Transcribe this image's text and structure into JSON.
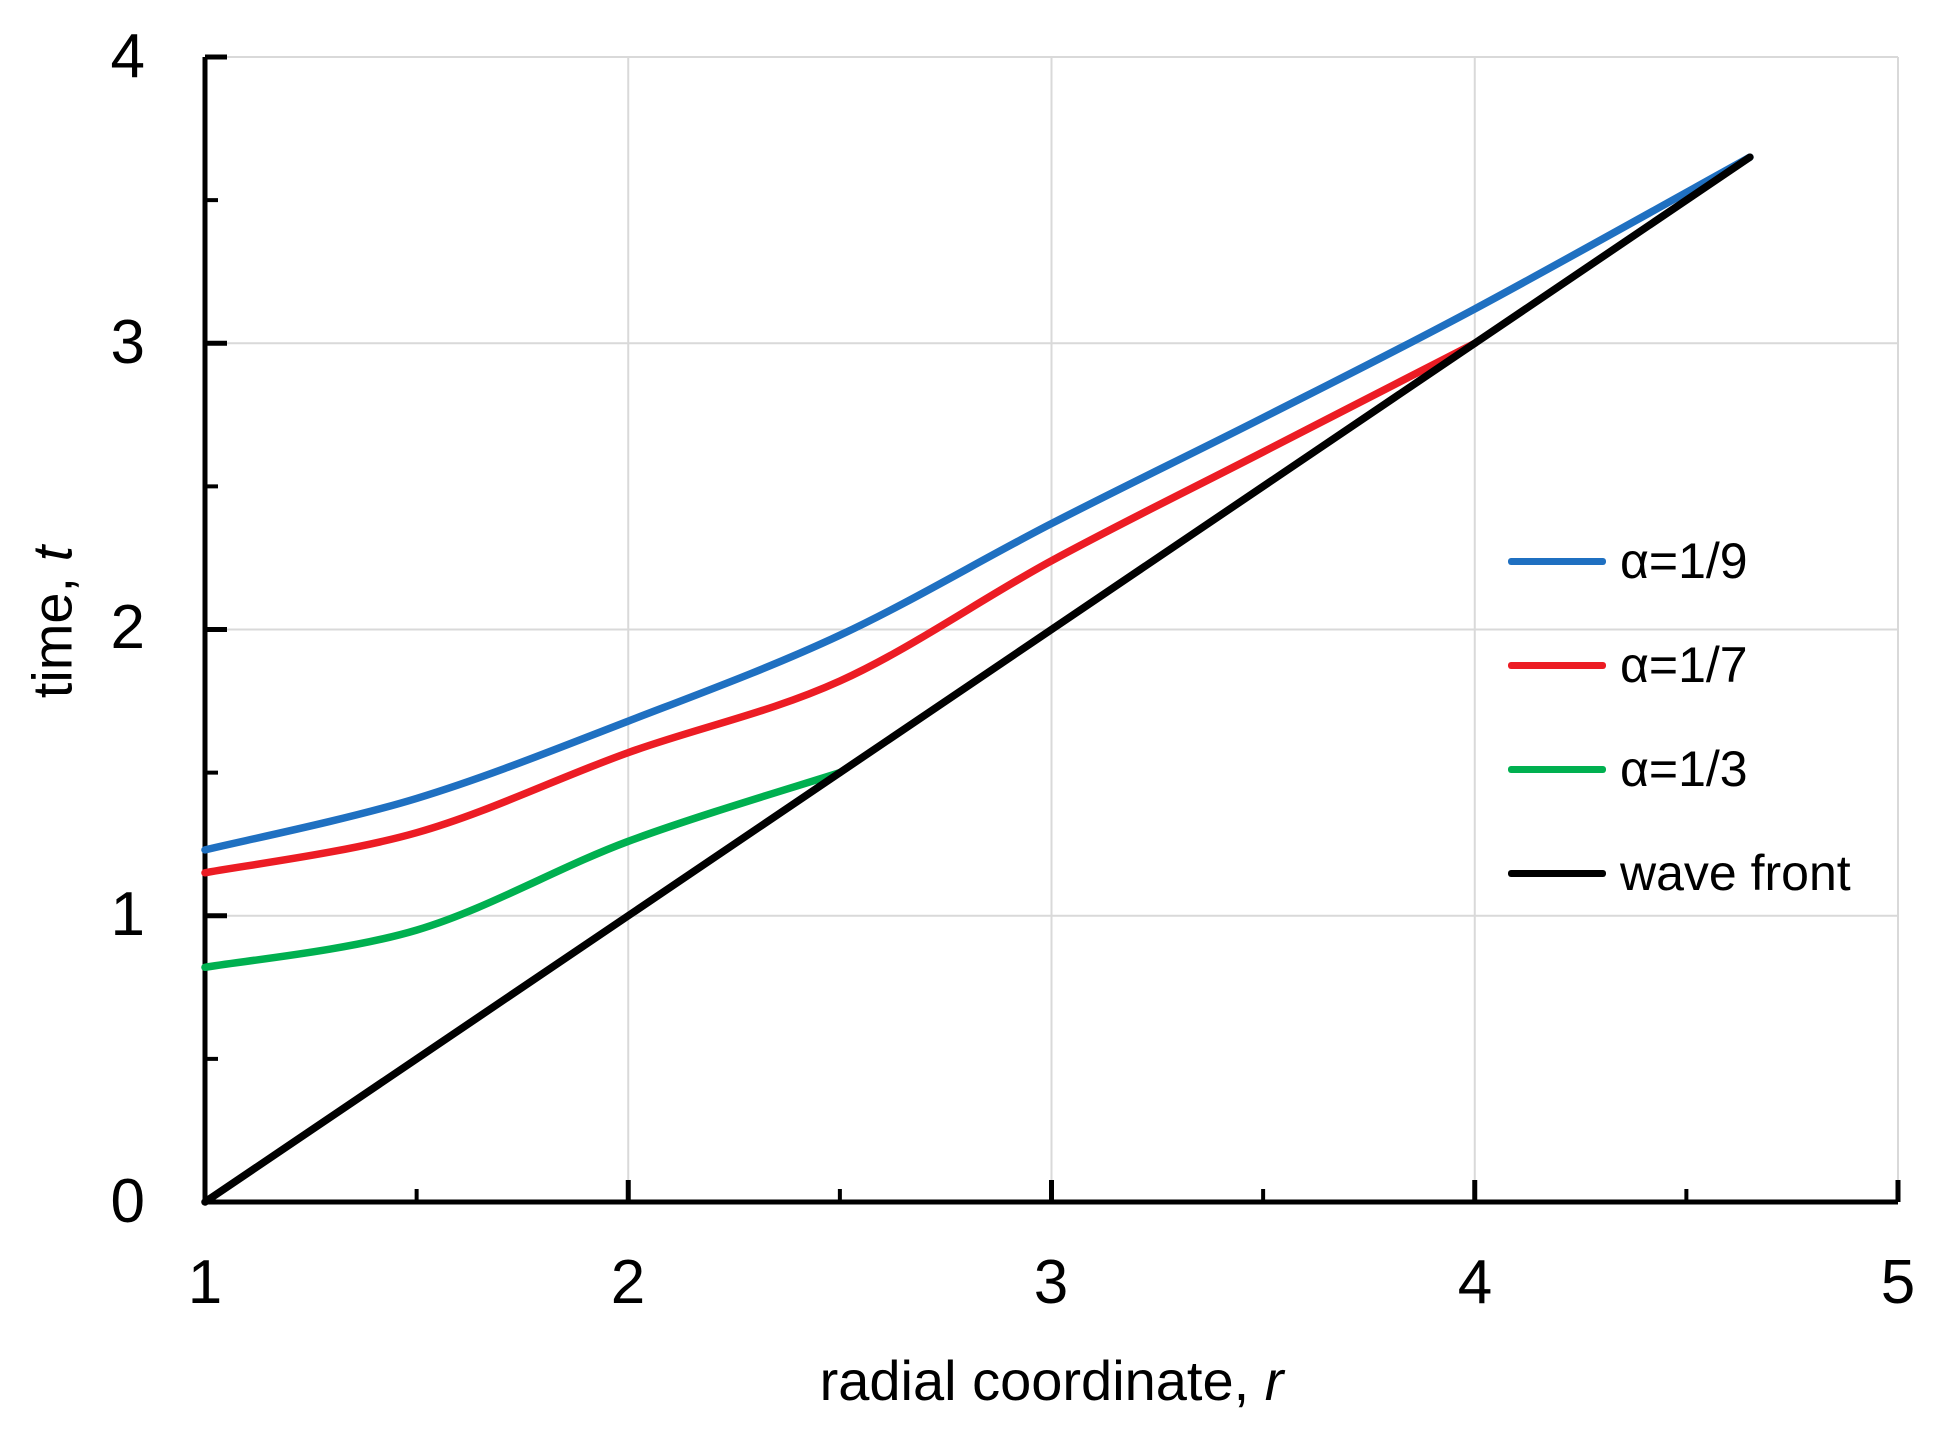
{
  "figure": {
    "background": "#ffffff",
    "grid_color": "#d9d9d9",
    "axis_color": "#000000"
  },
  "axes": {
    "x": {
      "title_main": "radial coordinate, ",
      "title_var": "r",
      "ticks": [
        "1",
        "2",
        "3",
        "4",
        "5"
      ]
    },
    "y": {
      "title_main": "time, ",
      "title_var": "t",
      "ticks": [
        "0",
        "1",
        "2",
        "3",
        "4"
      ]
    }
  },
  "legend": {
    "items": [
      {
        "label": "α=1/9",
        "color": "#1f70c1"
      },
      {
        "label": "α=1/7",
        "color": "#ec1c24"
      },
      {
        "label": "α=1/3",
        "color": "#00b050"
      },
      {
        "label": "wave front",
        "color": "#000000"
      }
    ]
  },
  "chart_data": {
    "type": "line",
    "title": "",
    "xlabel": "radial coordinate, r",
    "ylabel": "time, t",
    "xlim": [
      1,
      5
    ],
    "ylim": [
      0,
      4
    ],
    "x_major_ticks": [
      1,
      2,
      3,
      4,
      5
    ],
    "y_major_ticks": [
      0,
      1,
      2,
      3,
      4
    ],
    "minor_tick_step": 0.5,
    "grid": true,
    "legend_position": "right-inside",
    "series": [
      {
        "name": "α=1/9",
        "color": "#1f70c1",
        "smooth": true,
        "points": [
          [
            1,
            1.23
          ],
          [
            1.5,
            1.41
          ],
          [
            2,
            1.68
          ],
          [
            2.5,
            1.98
          ],
          [
            3,
            2.37
          ],
          [
            3.5,
            2.74
          ],
          [
            4,
            3.12
          ],
          [
            4.65,
            3.65
          ]
        ]
      },
      {
        "name": "α=1/7",
        "color": "#ec1c24",
        "smooth": true,
        "points": [
          [
            1,
            1.15
          ],
          [
            1.5,
            1.29
          ],
          [
            2,
            1.57
          ],
          [
            2.5,
            1.82
          ],
          [
            3,
            2.24
          ],
          [
            3.5,
            2.62
          ],
          [
            4,
            3.0
          ]
        ]
      },
      {
        "name": "α=1/3",
        "color": "#00b050",
        "smooth": true,
        "points": [
          [
            1,
            0.82
          ],
          [
            1.5,
            0.95
          ],
          [
            2,
            1.26
          ],
          [
            2.5,
            1.5
          ]
        ]
      },
      {
        "name": "wave front",
        "color": "#000000",
        "smooth": false,
        "points": [
          [
            1,
            0
          ],
          [
            4.65,
            3.65
          ]
        ]
      }
    ]
  }
}
